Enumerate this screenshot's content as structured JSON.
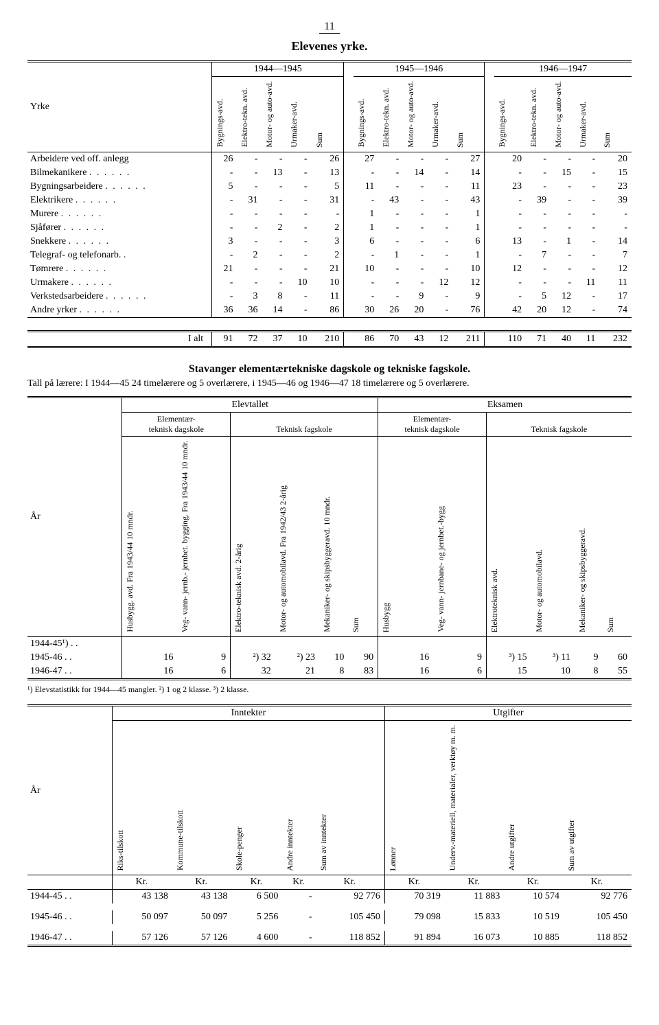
{
  "page_number": "11",
  "table1": {
    "title": "Elevenes yrke.",
    "row_header": "Yrke",
    "year_groups": [
      "1944—1945",
      "1945—1946",
      "1946—1947"
    ],
    "col_headers": [
      "Bygnings-avd.",
      "Elektro-tekn. avd.",
      "Motor- og auto-avd.",
      "Urmaker-avd.",
      "Sum"
    ],
    "rows": [
      {
        "label": "Arbeidere ved off. anlegg",
        "v": [
          "26",
          "-",
          "-",
          "-",
          "26",
          "27",
          "-",
          "-",
          "-",
          "27",
          "20",
          "-",
          "-",
          "-",
          "20"
        ]
      },
      {
        "label": "Bilmekanikere",
        "dots": true,
        "v": [
          "-",
          "-",
          "13",
          "-",
          "13",
          "-",
          "-",
          "14",
          "-",
          "14",
          "-",
          "-",
          "15",
          "-",
          "15"
        ]
      },
      {
        "label": "Bygningsarbeidere",
        "dots": true,
        "v": [
          "5",
          "-",
          "-",
          "-",
          "5",
          "11",
          "-",
          "-",
          "-",
          "11",
          "23",
          "-",
          "-",
          "-",
          "23"
        ]
      },
      {
        "label": "Elektrikere",
        "dots": true,
        "v": [
          "-",
          "31",
          "-",
          "-",
          "31",
          "-",
          "43",
          "-",
          "-",
          "43",
          "-",
          "39",
          "-",
          "-",
          "39"
        ]
      },
      {
        "label": "Murere",
        "dots": true,
        "v": [
          "-",
          "-",
          "-",
          "-",
          "-",
          "1",
          "-",
          "-",
          "-",
          "1",
          "-",
          "-",
          "-",
          "-",
          "-"
        ]
      },
      {
        "label": "Sjåfører",
        "dots": true,
        "v": [
          "-",
          "-",
          "2",
          "-",
          "2",
          "1",
          "-",
          "-",
          "-",
          "1",
          "-",
          "-",
          "-",
          "-",
          "-"
        ]
      },
      {
        "label": "Snekkere",
        "dots": true,
        "v": [
          "3",
          "-",
          "-",
          "-",
          "3",
          "6",
          "-",
          "-",
          "-",
          "6",
          "13",
          "-",
          "1",
          "-",
          "14"
        ]
      },
      {
        "label": "Telegraf- og telefonarb. .",
        "v": [
          "-",
          "2",
          "-",
          "-",
          "2",
          "-",
          "1",
          "-",
          "-",
          "1",
          "-",
          "7",
          "-",
          "-",
          "7"
        ]
      },
      {
        "label": "Tømrere",
        "dots": true,
        "v": [
          "21",
          "-",
          "-",
          "-",
          "21",
          "10",
          "-",
          "-",
          "-",
          "10",
          "12",
          "-",
          "-",
          "-",
          "12"
        ]
      },
      {
        "label": "Urmakere",
        "dots": true,
        "v": [
          "-",
          "-",
          "-",
          "10",
          "10",
          "-",
          "-",
          "-",
          "12",
          "12",
          "-",
          "-",
          "-",
          "11",
          "11"
        ]
      },
      {
        "label": "Verkstedsarbeidere",
        "dots": true,
        "v": [
          "-",
          "3",
          "8",
          "-",
          "11",
          "-",
          "-",
          "9",
          "-",
          "9",
          "-",
          "5",
          "12",
          "-",
          "17"
        ]
      },
      {
        "label": "Andre yrker",
        "dots": true,
        "v": [
          "36",
          "36",
          "14",
          "-",
          "86",
          "30",
          "26",
          "20",
          "-",
          "76",
          "42",
          "20",
          "12",
          "-",
          "74"
        ]
      }
    ],
    "total_label": "I alt",
    "total": [
      "91",
      "72",
      "37",
      "10",
      "210",
      "86",
      "70",
      "43",
      "12",
      "211",
      "110",
      "71",
      "40",
      "11",
      "232"
    ]
  },
  "section2": {
    "heading": "Stavanger elementærtekniske dagskole og tekniske fagskole.",
    "intro": "Tall på lærere: I 1944—45 24 timelærere og 5 overlærere, i 1945—46 og 1946—47 18 timelærere og 5 overlærere."
  },
  "table2": {
    "top_groups": [
      "Elevtallet",
      "Eksamen"
    ],
    "sub_groups": [
      "Elementær-teknisk dagskole",
      "Teknisk fagskole",
      "Elementær-teknisk dagskole",
      "Teknisk fagskole"
    ],
    "row_header": "År",
    "cols": [
      "Husbygg. avd. Fra 1943/44 10 mndr.",
      "Veg- vann- jernb.- jernbet. bygging. Fra 1943/44 10 mndr.",
      "Elektro-teknisk avd. 2-årig",
      "Motor- og automobilavd. Fra 1942/43 2-årig",
      "Mekaniker- og skipsbyggeravd. 10 mndr.",
      "Sum",
      "Husbygg",
      "Veg- vann- jernbane- og jernbet.-bygg",
      "Elektroteknisk avd.",
      "Motor- og automobilavd.",
      "Mekaniker- og skipsbyggeravd.",
      "Sum"
    ],
    "rows": [
      {
        "label": "1944-45¹) . .",
        "v": [
          "",
          "",
          "",
          "",
          "",
          "",
          "",
          "",
          "",
          "",
          "",
          ""
        ]
      },
      {
        "label": "1945-46  . .",
        "v": [
          "16",
          "9",
          "²) 32",
          "²) 23",
          "10",
          "90",
          "16",
          "9",
          "³) 15",
          "³) 11",
          "9",
          "60"
        ]
      },
      {
        "label": "1946-47  . .",
        "v": [
          "16",
          "6",
          "32",
          "21",
          "8",
          "83",
          "16",
          "6",
          "15",
          "10",
          "8",
          "55"
        ]
      }
    ],
    "footnote": "¹) Elevstatistikk for 1944—45 mangler.  ²) 1 og 2 klasse.  ³) 2 klasse."
  },
  "table3": {
    "top_groups": [
      "Inntekter",
      "Utgifter"
    ],
    "row_header": "År",
    "cols": [
      "Riks-tilskott",
      "Kommune-tilskott",
      "Skole-penger",
      "Andre inntekter",
      "Sum av inntekter",
      "Lønner",
      "Underv.-materiell, materialer, verktøy m. m.",
      "Andre utgifter",
      "Sum av utgifter"
    ],
    "unit_row": [
      "Kr.",
      "Kr.",
      "Kr.",
      "Kr.",
      "Kr.",
      "Kr.",
      "Kr.",
      "Kr.",
      "Kr."
    ],
    "rows": [
      {
        "label": "1944-45  . .",
        "v": [
          "43 138",
          "43 138",
          "6 500",
          "-",
          "92 776",
          "70 319",
          "11 883",
          "10 574",
          "92 776"
        ]
      },
      {
        "label": "1945-46  . .",
        "v": [
          "50 097",
          "50 097",
          "5 256",
          "-",
          "105 450",
          "79 098",
          "15 833",
          "10 519",
          "105 450"
        ]
      },
      {
        "label": "1946-47  . .",
        "v": [
          "57 126",
          "57 126",
          "4 600",
          "-",
          "118 852",
          "91 894",
          "16 073",
          "10 885",
          "118 852"
        ]
      }
    ]
  }
}
